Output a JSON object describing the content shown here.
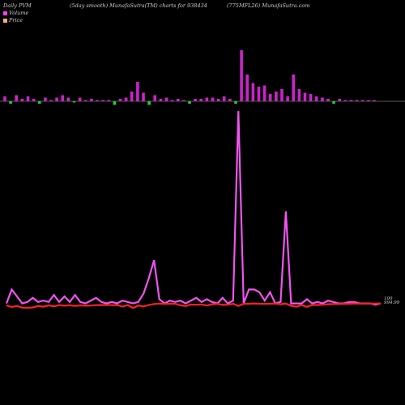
{
  "header": {
    "left": "Daily PVM",
    "center": "(5day smooth) MunafaSutra(TM) charts for 938434",
    "right": "(775MFL26) MunafaSutra.com"
  },
  "legend": {
    "volume_label": "Volume",
    "price_label": "Price"
  },
  "end_labels": {
    "volume_end": "100",
    "price_end": "994.99"
  },
  "colors": {
    "background": "#000000",
    "volume_up": "#cc22cc",
    "volume_down": "#22cc44",
    "volume_line": "#ee55ee",
    "price_line": "#ff2222",
    "baseline": "#aaaaaa"
  },
  "chart_data": [
    {
      "type": "bar",
      "title": "Volume",
      "values": [
        4,
        -2,
        5,
        2,
        4,
        2,
        -2,
        3,
        1,
        3,
        5,
        3,
        -1,
        3,
        1,
        2,
        1,
        1,
        1,
        -3,
        2,
        3,
        8,
        16,
        7,
        -3,
        5,
        2,
        3,
        1,
        2,
        1,
        -2,
        2,
        2,
        3,
        3,
        2,
        4,
        2,
        -2,
        42,
        22,
        15,
        12,
        13,
        6,
        8,
        10,
        4,
        22,
        10,
        7,
        6,
        4,
        3,
        2,
        -2,
        2,
        1,
        1,
        1,
        1,
        1,
        1
      ],
      "colors": [
        "up",
        "down",
        "up",
        "up",
        "up",
        "up",
        "down",
        "up",
        "up",
        "up",
        "up",
        "up",
        "down",
        "up",
        "up",
        "up",
        "up",
        "up",
        "up",
        "down",
        "up",
        "up",
        "up",
        "up",
        "up",
        "down",
        "up",
        "up",
        "up",
        "up",
        "up",
        "up",
        "down",
        "up",
        "up",
        "up",
        "up",
        "up",
        "up",
        "up",
        "down",
        "up",
        "up",
        "up",
        "up",
        "up",
        "up",
        "up",
        "up",
        "up",
        "up",
        "up",
        "up",
        "up",
        "up",
        "up",
        "up",
        "down",
        "up",
        "up",
        "up",
        "up",
        "up",
        "up",
        "up"
      ]
    },
    {
      "type": "line",
      "series": [
        {
          "name": "Volume",
          "values": [
            2,
            12,
            7,
            2,
            3,
            6,
            3,
            4,
            3,
            8,
            3,
            7,
            3,
            8,
            3,
            2,
            4,
            6,
            3,
            2,
            3,
            2,
            4,
            3,
            2,
            3,
            9,
            20,
            33,
            5,
            2,
            4,
            3,
            4,
            2,
            4,
            6,
            3,
            5,
            3,
            2,
            6,
            2,
            4,
            140,
            2,
            12,
            12,
            10,
            4,
            10,
            2,
            3,
            68,
            2,
            2,
            2,
            5,
            2,
            3,
            2,
            4,
            3,
            2,
            2,
            3,
            3,
            2,
            2,
            2,
            1,
            2
          ]
        },
        {
          "name": "Price",
          "values": [
            0.7,
            -0.6,
            0.2,
            -1.1,
            -1.2,
            -1.0,
            0.2,
            -0.4,
            0.6,
            -0.1,
            0.8,
            0.4,
            0.7,
            0.2,
            0.6,
            0.4,
            0.5,
            0.8,
            0.9,
            1.0,
            0.8,
            0.9,
            -0.3,
            0.9,
            -1.3,
            0.5,
            -0.2,
            0.9,
            1.7,
            2.0,
            1.8,
            1.9,
            1.9,
            0.7,
            0.1,
            1.2,
            1.1,
            1.3,
            0.5,
            1.5,
            1.8,
            1.0,
            1.1,
            1.9,
            0.2,
            1.8,
            1.9,
            2.1,
            1.9,
            1.8,
            1.9,
            2.0,
            1.5,
            2.0,
            0.3,
            -0.4,
            0.8,
            -0.5,
            1.0,
            0.9,
            1.2,
            1.5,
            1.6,
            1.7,
            1.8,
            1.9,
            2.0,
            2.0,
            2.0,
            2.0,
            2.0,
            2.1
          ]
        }
      ]
    }
  ]
}
